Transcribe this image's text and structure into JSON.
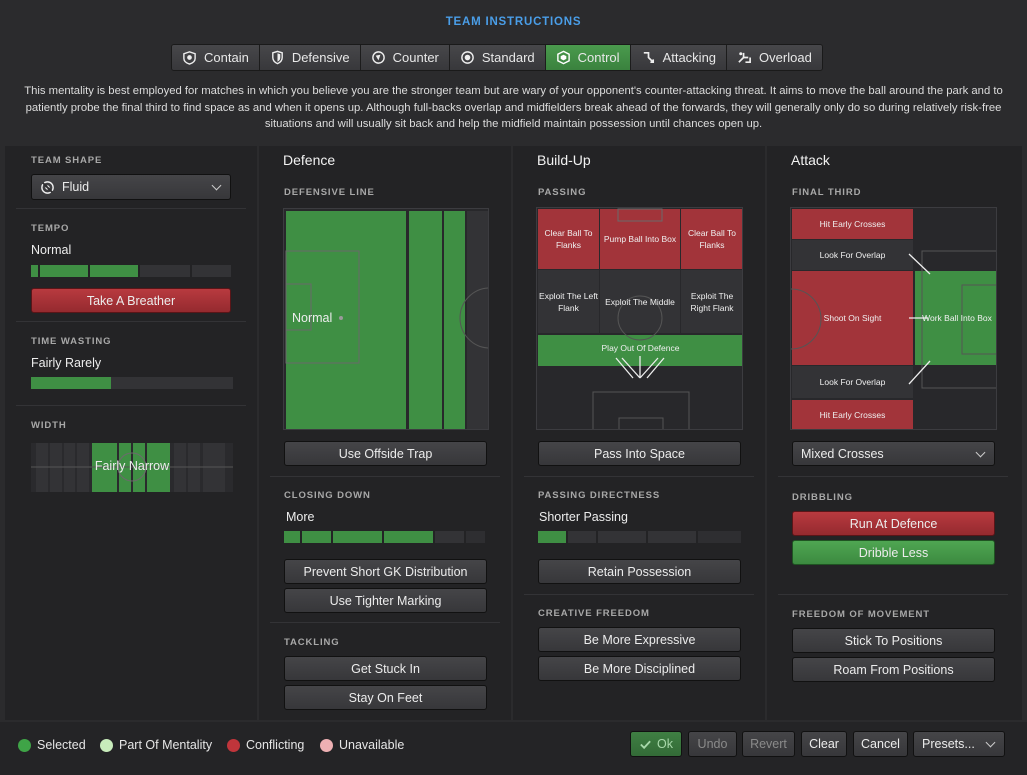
{
  "title": "TEAM INSTRUCTIONS",
  "mentalities": [
    {
      "label": "Contain",
      "icon": "contain-icon"
    },
    {
      "label": "Defensive",
      "icon": "shield-icon"
    },
    {
      "label": "Counter",
      "icon": "counter-icon"
    },
    {
      "label": "Standard",
      "icon": "standard-icon"
    },
    {
      "label": "Control",
      "icon": "control-icon",
      "selected": true
    },
    {
      "label": "Attacking",
      "icon": "attacking-icon"
    },
    {
      "label": "Overload",
      "icon": "overload-icon"
    }
  ],
  "description": "This mentality is best employed for matches in which you believe you are the stronger team but are wary of your opponent's counter-attacking threat. It aims to move the ball around the park and to patiently probe the final third to find space as and when it opens up. Although full-backs overlap and midfielders break ahead of the forwards, they will generally only do so during relatively risk-free situations and will usually sit back and help the midfield maintain possession until chances open up.",
  "left": {
    "team_shape": {
      "label": "TEAM SHAPE",
      "value": "Fluid"
    },
    "tempo": {
      "label": "TEMPO",
      "value": "Normal",
      "button": "Take A Breather",
      "level": 0.53
    },
    "time_wasting": {
      "label": "TIME WASTING",
      "value": "Fairly Rarely",
      "level": 0.38
    },
    "width": {
      "label": "WIDTH",
      "value": "Fairly Narrow"
    }
  },
  "defence": {
    "header": "Defence",
    "defensive_line": {
      "label": "DEFENSIVE LINE",
      "value": "Normal"
    },
    "offside_button": "Use Offside Trap",
    "closing_down": {
      "label": "CLOSING DOWN",
      "value": "More",
      "level": 0.75
    },
    "buttons": [
      "Prevent Short GK Distribution",
      "Use Tighter Marking"
    ],
    "tackling": {
      "label": "TACKLING",
      "buttons": [
        "Get Stuck In",
        "Stay On Feet"
      ]
    }
  },
  "buildup": {
    "header": "Build-Up",
    "passing": {
      "label": "PASSING",
      "zones": [
        "Clear Ball To Flanks",
        "Pump Ball Into Box",
        "Clear Ball To Flanks",
        "Exploit The Left Flank",
        "Exploit The Middle",
        "Exploit The Right Flank",
        "Play Out Of Defence"
      ]
    },
    "space_button": "Pass Into Space",
    "directness": {
      "label": "PASSING DIRECTNESS",
      "value": "Shorter Passing",
      "level": 0.15
    },
    "retain_button": "Retain Possession",
    "creative": {
      "label": "CREATIVE FREEDOM",
      "buttons": [
        "Be More Expressive",
        "Be More Disciplined"
      ]
    }
  },
  "attack": {
    "header": "Attack",
    "final_third": {
      "label": "FINAL THIRD",
      "zones": [
        "Hit Early Crosses",
        "Look For Overlap",
        "Shoot On Sight",
        "Work Ball Into Box",
        "Look For Overlap",
        "Hit Early Crosses"
      ]
    },
    "crosses_select": "Mixed Crosses",
    "dribbling": {
      "label": "DRIBBLING",
      "buttons": [
        "Run At Defence",
        "Dribble Less"
      ]
    },
    "movement": {
      "label": "FREEDOM OF MOVEMENT",
      "buttons": [
        "Stick To Positions",
        "Roam From Positions"
      ]
    }
  },
  "legend": [
    {
      "label": "Selected",
      "color": "#3fa447"
    },
    {
      "label": "Part Of Mentality",
      "color": "#c8ecbb"
    },
    {
      "label": "Conflicting",
      "color": "#c0353b"
    },
    {
      "label": "Unavailable",
      "color": "#eeb0b3"
    }
  ],
  "footer_buttons": {
    "ok": "Ok",
    "undo": "Undo",
    "revert": "Revert",
    "clear": "Clear",
    "cancel": "Cancel",
    "presets": "Presets..."
  },
  "colors": {
    "accent": "#4a9ee8",
    "green": "#3f8f44",
    "red": "#a2343a"
  }
}
